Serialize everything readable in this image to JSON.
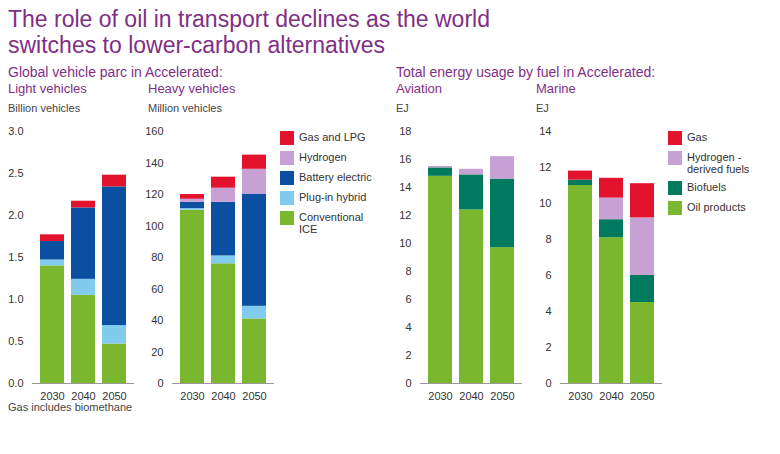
{
  "title": "The role of oil in transport declines as the world switches to lower-carbon alternatives",
  "caption": "Gas includes biomethane",
  "chart_data": [
    {
      "type": "bar",
      "stacked": true,
      "subtitle": "Global vehicle parc in Accelerated:",
      "title": "Light vehicles",
      "ylabel": "Billion vehicles",
      "categories": [
        "2030",
        "2040",
        "2050"
      ],
      "ylim": [
        0,
        3
      ],
      "yticks": [
        {
          "value": 0,
          "label": "0.0"
        },
        {
          "value": 0.5,
          "label": "0.5"
        },
        {
          "value": 1,
          "label": "1.0"
        },
        {
          "value": 1.5,
          "label": "1.5"
        },
        {
          "value": 2,
          "label": "2.0"
        },
        {
          "value": 2.5,
          "label": "2.5"
        },
        {
          "value": 3,
          "label": "3.0"
        }
      ],
      "series": [
        {
          "name": "Conventional ICE",
          "color": "#7ab62e",
          "values": [
            1.4,
            1.05,
            0.47
          ]
        },
        {
          "name": "Plug-in hybrid",
          "color": "#80cbee",
          "values": [
            0.07,
            0.19,
            0.22
          ]
        },
        {
          "name": "Battery electric",
          "color": "#0a4fa0",
          "values": [
            0.22,
            0.85,
            1.65
          ]
        },
        {
          "name": "Gas and LPG",
          "color": "#e3122d",
          "values": [
            0.08,
            0.08,
            0.14
          ]
        }
      ]
    },
    {
      "type": "bar",
      "stacked": true,
      "subtitle": "Global vehicle parc in Accelerated:",
      "title": "Heavy vehicles",
      "ylabel": "Million vehicles",
      "legend": "right",
      "categories": [
        "2030",
        "2040",
        "2050"
      ],
      "ylim": [
        0,
        160
      ],
      "yticks": [
        0,
        20,
        40,
        60,
        80,
        100,
        120,
        140,
        160
      ],
      "series": [
        {
          "name": "Conventional ICE",
          "color": "#7ab62e",
          "values": [
            110,
            76,
            41
          ]
        },
        {
          "name": "Plug-in hybrid",
          "color": "#80cbee",
          "values": [
            1,
            5,
            8
          ]
        },
        {
          "name": "Battery electric",
          "color": "#0a4fa0",
          "values": [
            4,
            34,
            71
          ]
        },
        {
          "name": "Hydrogen",
          "color": "#c7a0d4",
          "values": [
            2,
            9,
            16
          ]
        },
        {
          "name": "Gas and LPG",
          "color": "#e3122d",
          "values": [
            3,
            7,
            9
          ]
        }
      ]
    },
    {
      "type": "bar",
      "stacked": true,
      "subtitle": "Total energy usage by fuel in Accelerated:",
      "title": "Aviation",
      "ylabel": "EJ",
      "categories": [
        "2030",
        "2040",
        "2050"
      ],
      "ylim": [
        0,
        18
      ],
      "yticks": [
        0,
        2,
        4,
        6,
        8,
        10,
        12,
        14,
        16,
        18
      ],
      "series": [
        {
          "name": "Oil products",
          "color": "#7ab62e",
          "values": [
            14.8,
            12.4,
            9.7
          ]
        },
        {
          "name": "Biofuels",
          "color": "#007a5e",
          "values": [
            0.6,
            2.5,
            4.9
          ]
        },
        {
          "name": "Hydrogen - derived fuels",
          "color": "#c7a0d4",
          "values": [
            0.1,
            0.4,
            1.6
          ]
        }
      ]
    },
    {
      "type": "bar",
      "stacked": true,
      "subtitle": "Total energy usage by fuel in Accelerated:",
      "title": "Marine",
      "ylabel": "EJ",
      "legend": "right",
      "categories": [
        "2030",
        "2040",
        "2050"
      ],
      "ylim": [
        0,
        14
      ],
      "yticks": [
        0,
        2,
        4,
        6,
        8,
        10,
        12,
        14
      ],
      "series": [
        {
          "name": "Oil products",
          "color": "#7ab62e",
          "values": [
            11.0,
            8.1,
            4.5
          ]
        },
        {
          "name": "Biofuels",
          "color": "#007a5e",
          "values": [
            0.3,
            1.0,
            1.5
          ]
        },
        {
          "name": "Hydrogen - derived fuels",
          "color": "#c7a0d4",
          "values": [
            0,
            1.2,
            3.2
          ]
        },
        {
          "name": "Gas",
          "color": "#e3122d",
          "values": [
            0.5,
            1.1,
            1.9
          ]
        }
      ]
    }
  ]
}
